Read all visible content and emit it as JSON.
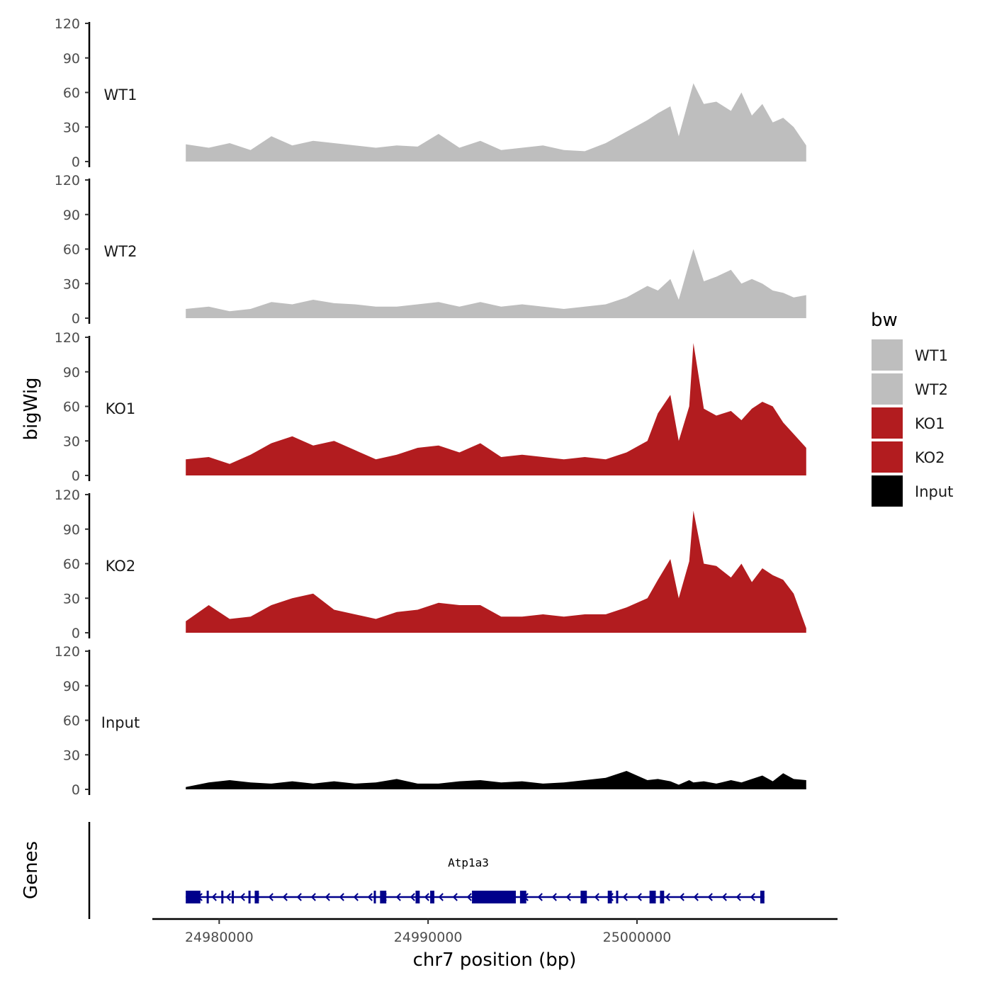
{
  "chart_data": {
    "type": "area",
    "layout": "stacked tracks",
    "xlabel": "chr7 position (bp)",
    "ylabel": "bigWig",
    "gene_track_label": "Genes",
    "xlim": [
      24976800,
      25009600
    ],
    "data_xrange": [
      24978400,
      25008100
    ],
    "xticks": [
      24980000,
      24990000,
      25000000
    ],
    "xtick_labels": [
      "24980000",
      "24990000",
      "25000000"
    ],
    "ylim": [
      0,
      120
    ],
    "yticks": [
      0,
      30,
      60,
      90,
      120
    ],
    "ytick_labels": [
      "0",
      "30",
      "60",
      "90",
      "120"
    ],
    "legend": {
      "title": "bw",
      "placement": "right",
      "entries": [
        {
          "label": "WT1",
          "color": "#bebebe"
        },
        {
          "label": "WT2",
          "color": "#bebebe"
        },
        {
          "label": "KO1",
          "color": "#b21c1f"
        },
        {
          "label": "KO2",
          "color": "#b21c1f"
        },
        {
          "label": "Input",
          "color": "#000000"
        }
      ]
    },
    "tracks": [
      {
        "name": "WT1",
        "color": "#bebebe",
        "x": [
          24978400,
          24979500,
          24980500,
          24981500,
          24982500,
          24983500,
          24984500,
          24985500,
          24986500,
          24987500,
          24988500,
          24989500,
          24990500,
          24991500,
          24992500,
          24993500,
          24994500,
          24995500,
          24996500,
          24997500,
          24998500,
          24999500,
          25000500,
          25001000,
          25001600,
          25002000,
          25002500,
          25002700,
          25003200,
          25003800,
          25004500,
          25005000,
          25005500,
          25006000,
          25006500,
          25007000,
          25007500,
          25008100
        ],
        "values": [
          15,
          12,
          16,
          10,
          22,
          14,
          18,
          16,
          14,
          12,
          14,
          13,
          24,
          12,
          18,
          10,
          12,
          14,
          10,
          9,
          16,
          26,
          36,
          42,
          48,
          22,
          55,
          68,
          50,
          52,
          44,
          60,
          40,
          50,
          34,
          38,
          30,
          14
        ]
      },
      {
        "name": "WT2",
        "color": "#bebebe",
        "x": [
          24978400,
          24979500,
          24980500,
          24981500,
          24982500,
          24983500,
          24984500,
          24985500,
          24986500,
          24987500,
          24988500,
          24989500,
          24990500,
          24991500,
          24992500,
          24993500,
          24994500,
          24995500,
          24996500,
          24997500,
          24998500,
          24999500,
          25000500,
          25001000,
          25001600,
          25002000,
          25002500,
          25002700,
          25003200,
          25003800,
          25004500,
          25005000,
          25005500,
          25006000,
          25006500,
          25007000,
          25007500,
          25008100
        ],
        "values": [
          8,
          10,
          6,
          8,
          14,
          12,
          16,
          13,
          12,
          10,
          10,
          12,
          14,
          10,
          14,
          10,
          12,
          10,
          8,
          10,
          12,
          18,
          28,
          24,
          34,
          16,
          48,
          60,
          32,
          36,
          42,
          30,
          34,
          30,
          24,
          22,
          18,
          20
        ]
      },
      {
        "name": "KO1",
        "color": "#b21c1f",
        "x": [
          24978400,
          24979500,
          24980500,
          24981500,
          24982500,
          24983500,
          24984500,
          24985500,
          24986500,
          24987500,
          24988500,
          24989500,
          24990500,
          24991500,
          24992500,
          24993500,
          24994500,
          24995500,
          24996500,
          24997500,
          24998500,
          24999500,
          25000500,
          25001000,
          25001600,
          25002000,
          25002500,
          25002700,
          25003200,
          25003800,
          25004500,
          25005000,
          25005500,
          25006000,
          25006500,
          25007000,
          25007500,
          25008100
        ],
        "values": [
          14,
          16,
          10,
          18,
          28,
          34,
          26,
          30,
          22,
          14,
          18,
          24,
          26,
          20,
          28,
          16,
          18,
          16,
          14,
          16,
          14,
          20,
          30,
          54,
          70,
          30,
          60,
          115,
          58,
          52,
          56,
          48,
          58,
          64,
          60,
          46,
          36,
          24
        ]
      },
      {
        "name": "KO2",
        "color": "#b21c1f",
        "x": [
          24978400,
          24979500,
          24980500,
          24981500,
          24982500,
          24983500,
          24984500,
          24985500,
          24986500,
          24987500,
          24988500,
          24989500,
          24990500,
          24991500,
          24992500,
          24993500,
          24994500,
          24995500,
          24996500,
          24997500,
          24998500,
          24999500,
          25000500,
          25001000,
          25001600,
          25002000,
          25002500,
          25002700,
          25003200,
          25003800,
          25004500,
          25005000,
          25005500,
          25006000,
          25006500,
          25007000,
          25007500,
          25008100
        ],
        "values": [
          10,
          24,
          12,
          14,
          24,
          30,
          34,
          20,
          16,
          12,
          18,
          20,
          26,
          24,
          24,
          14,
          14,
          16,
          14,
          16,
          16,
          22,
          30,
          46,
          64,
          30,
          62,
          106,
          60,
          58,
          48,
          60,
          44,
          56,
          50,
          46,
          34,
          4
        ]
      },
      {
        "name": "Input",
        "color": "#000000",
        "x": [
          24978400,
          24979500,
          24980500,
          24981500,
          24982500,
          24983500,
          24984500,
          24985500,
          24986500,
          24987500,
          24988500,
          24989500,
          24990500,
          24991500,
          24992500,
          24993500,
          24994500,
          24995500,
          24996500,
          24997500,
          24998500,
          24999500,
          25000500,
          25001000,
          25001600,
          25002000,
          25002500,
          25002700,
          25003200,
          25003800,
          25004500,
          25005000,
          25005500,
          25006000,
          25006500,
          25007000,
          25007500,
          25008100
        ],
        "values": [
          2,
          6,
          8,
          6,
          5,
          7,
          5,
          7,
          5,
          6,
          9,
          5,
          5,
          7,
          8,
          6,
          7,
          5,
          6,
          8,
          10,
          16,
          8,
          9,
          7,
          4,
          8,
          6,
          7,
          5,
          8,
          6,
          9,
          12,
          7,
          14,
          9,
          8
        ]
      }
    ],
    "genes": [
      {
        "name": "Atp1a3",
        "start": 24978400,
        "end": 25006100,
        "strand": "-",
        "color": "#00008b",
        "exons": [
          [
            24978400,
            24979100
          ],
          [
            24979400,
            24979500
          ],
          [
            24980100,
            24980200
          ],
          [
            24980600,
            24980700
          ],
          [
            24981400,
            24981500
          ],
          [
            24981700,
            24981900
          ],
          [
            24987400,
            24987500
          ],
          [
            24987700,
            24988000
          ],
          [
            24989400,
            24989600
          ],
          [
            24990100,
            24990300
          ],
          [
            24992100,
            24994200
          ],
          [
            24994400,
            24994700
          ],
          [
            24997300,
            24997600
          ],
          [
            24998600,
            24998800
          ],
          [
            24999000,
            24999100
          ],
          [
            25000600,
            25000900
          ],
          [
            25001100,
            25001300
          ],
          [
            25005900,
            25006100
          ]
        ]
      }
    ]
  }
}
